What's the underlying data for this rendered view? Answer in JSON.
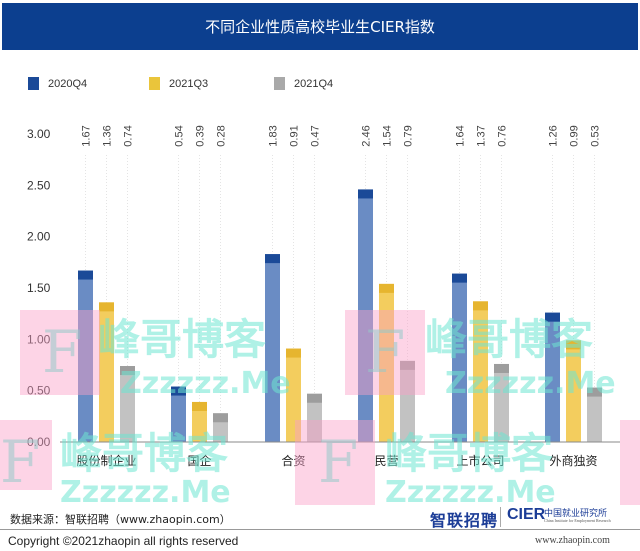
{
  "header": {
    "title": "不同企业性质高校毕业生CIER指数"
  },
  "legend": [
    {
      "label": "2020Q4",
      "color": "#1b4a98"
    },
    {
      "label": "2021Q3",
      "color": "#eac53b"
    },
    {
      "label": "2021Q4",
      "color": "#a9a9a9"
    }
  ],
  "chart_data": {
    "type": "bar",
    "title": "不同企业性质高校毕业生CIER指数",
    "xlabel": "",
    "ylabel": "",
    "ylim": [
      0,
      3.0
    ],
    "yticks": [
      "0.00",
      "0.50",
      "1.00",
      "1.50",
      "2.00",
      "2.50",
      "3.00"
    ],
    "grid": false,
    "legend_position": "top-left",
    "categories": [
      "股份制企业",
      "国企",
      "合资",
      "民营",
      "上市公司",
      "外商独资"
    ],
    "series": [
      {
        "name": "2020Q4",
        "values": [
          1.67,
          0.54,
          1.83,
          2.46,
          1.64,
          1.26
        ],
        "labels": [
          "1.67",
          "0.54",
          "1.83",
          "2.46",
          "1.64",
          "1.26"
        ]
      },
      {
        "name": "2021Q3",
        "values": [
          1.36,
          0.39,
          0.91,
          1.54,
          1.37,
          0.99
        ],
        "labels": [
          "1.36",
          "0.39",
          "0.91",
          "1.54",
          "1.37",
          "0.99"
        ]
      },
      {
        "name": "2021Q4",
        "values": [
          0.74,
          0.28,
          0.47,
          0.79,
          0.76,
          0.53
        ],
        "labels": [
          "0.74",
          "0.28",
          "0.47",
          "0.79",
          "0.76",
          "0.53"
        ]
      }
    ],
    "colors": {
      "2020Q4": {
        "body": "#6a8cc4",
        "cap": "#1b4a98"
      },
      "2021Q3": {
        "body": "#f3cd5e",
        "cap": "#e6b52f"
      },
      "2021Q4": {
        "body": "#c2c2c2",
        "cap": "#9d9d9d"
      }
    }
  },
  "footer": {
    "source": "数据来源：智联招聘（www.zhaopin.com）",
    "copyright": "Copyright ©2021zhaopin all rights reserved",
    "logo_zhaopin": "智联招聘",
    "logo_cier": "CIER",
    "logo_cier_cn": "中国就业研究所",
    "logo_cier_en": "China Institute for Employment Research",
    "url": "www.zhaopin.com"
  },
  "watermark": {
    "cn": "峰哥博客",
    "en": "Zzzzzz.Me",
    "letter": "F"
  }
}
